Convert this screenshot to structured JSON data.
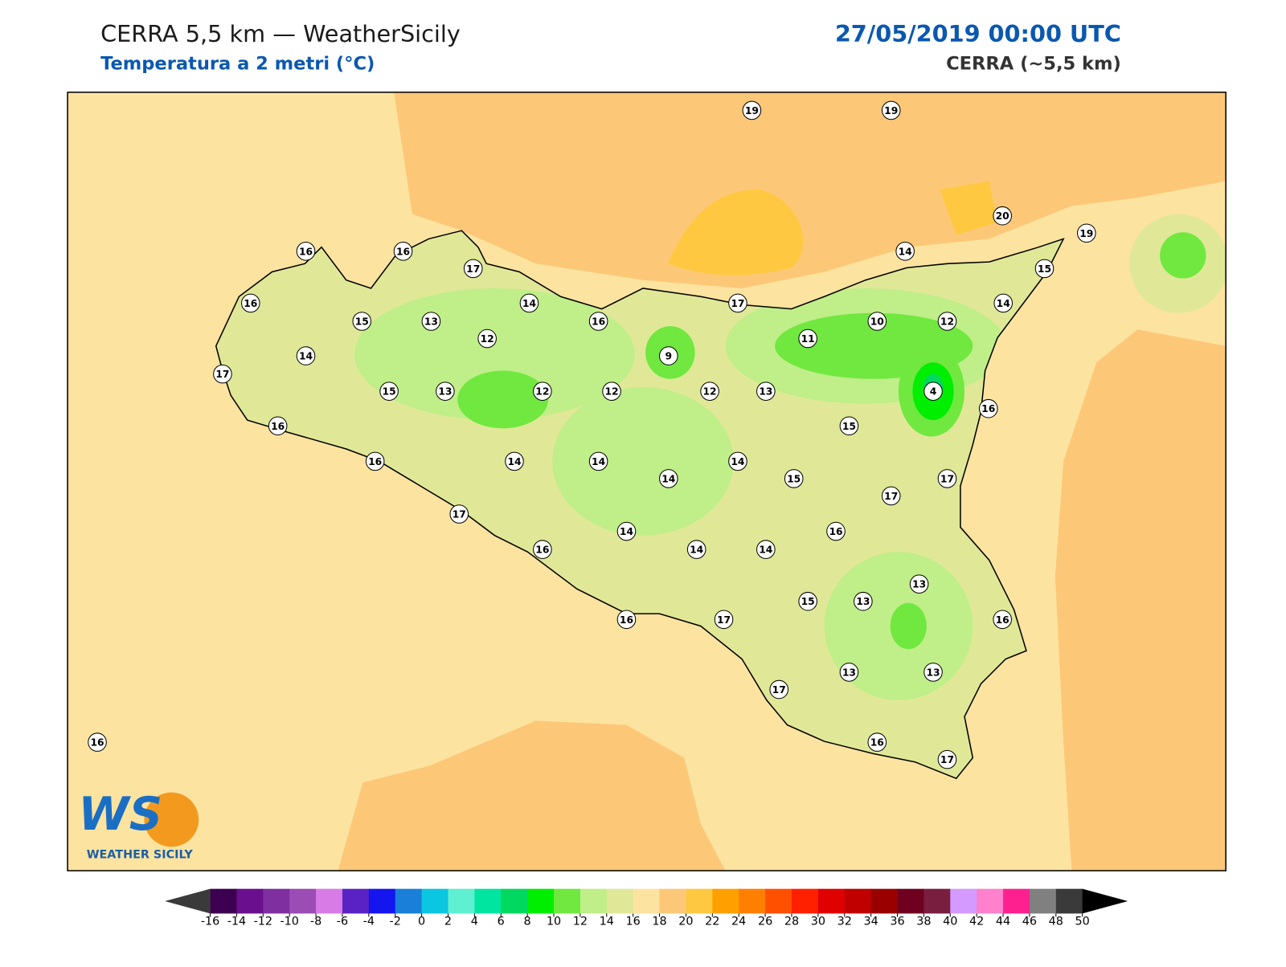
{
  "header": {
    "title": "CERRA 5,5 km — WeatherSicily",
    "subtitle": "Temperatura a 2 metri (°C)",
    "datetime": "27/05/2019 00:00 UTC",
    "model": "CERRA (~5,5 km)"
  },
  "stations": [
    19,
    19,
    20,
    19,
    16,
    16,
    17,
    14,
    15,
    16,
    14,
    17,
    14,
    15,
    13,
    16,
    10,
    12,
    12,
    11,
    14,
    9,
    17,
    15,
    13,
    12,
    12,
    12,
    13,
    4,
    16,
    16,
    15,
    16,
    14,
    14,
    14,
    14,
    15,
    17,
    17,
    17,
    16,
    14,
    16,
    14,
    14,
    13,
    15,
    13,
    16,
    17,
    16,
    13,
    13,
    17,
    16,
    16,
    17
  ],
  "logo": {
    "initials": "WS",
    "name": "WEATHER SICILY"
  },
  "colorbar": {
    "ticks": [
      -16,
      -14,
      -12,
      -10,
      -8,
      -6,
      -4,
      -2,
      0,
      2,
      4,
      6,
      8,
      10,
      12,
      14,
      16,
      18,
      20,
      22,
      24,
      26,
      28,
      30,
      32,
      34,
      36,
      38,
      40,
      42,
      44,
      46,
      48,
      50
    ],
    "colors": [
      "#3d0050",
      "#6a0f8e",
      "#7f2f9f",
      "#9b4db5",
      "#d97be6",
      "#5a22c4",
      "#1515f0",
      "#1a7fd8",
      "#0bc6e0",
      "#5ef0d0",
      "#00e5a0",
      "#00d860",
      "#00ee00",
      "#70e840",
      "#c0ee88",
      "#e0e898",
      "#fde3a0",
      "#fcc878",
      "#ffc840",
      "#ffa000",
      "#ff8000",
      "#ff5000",
      "#ff2000",
      "#e00000",
      "#c00000",
      "#9a0000",
      "#700020",
      "#7a1e40",
      "#d49aff",
      "#ff80cc",
      "#ff2090",
      "#808080",
      "#3a3a3a"
    ],
    "under": "#3a3a3a",
    "over": "#000000"
  }
}
